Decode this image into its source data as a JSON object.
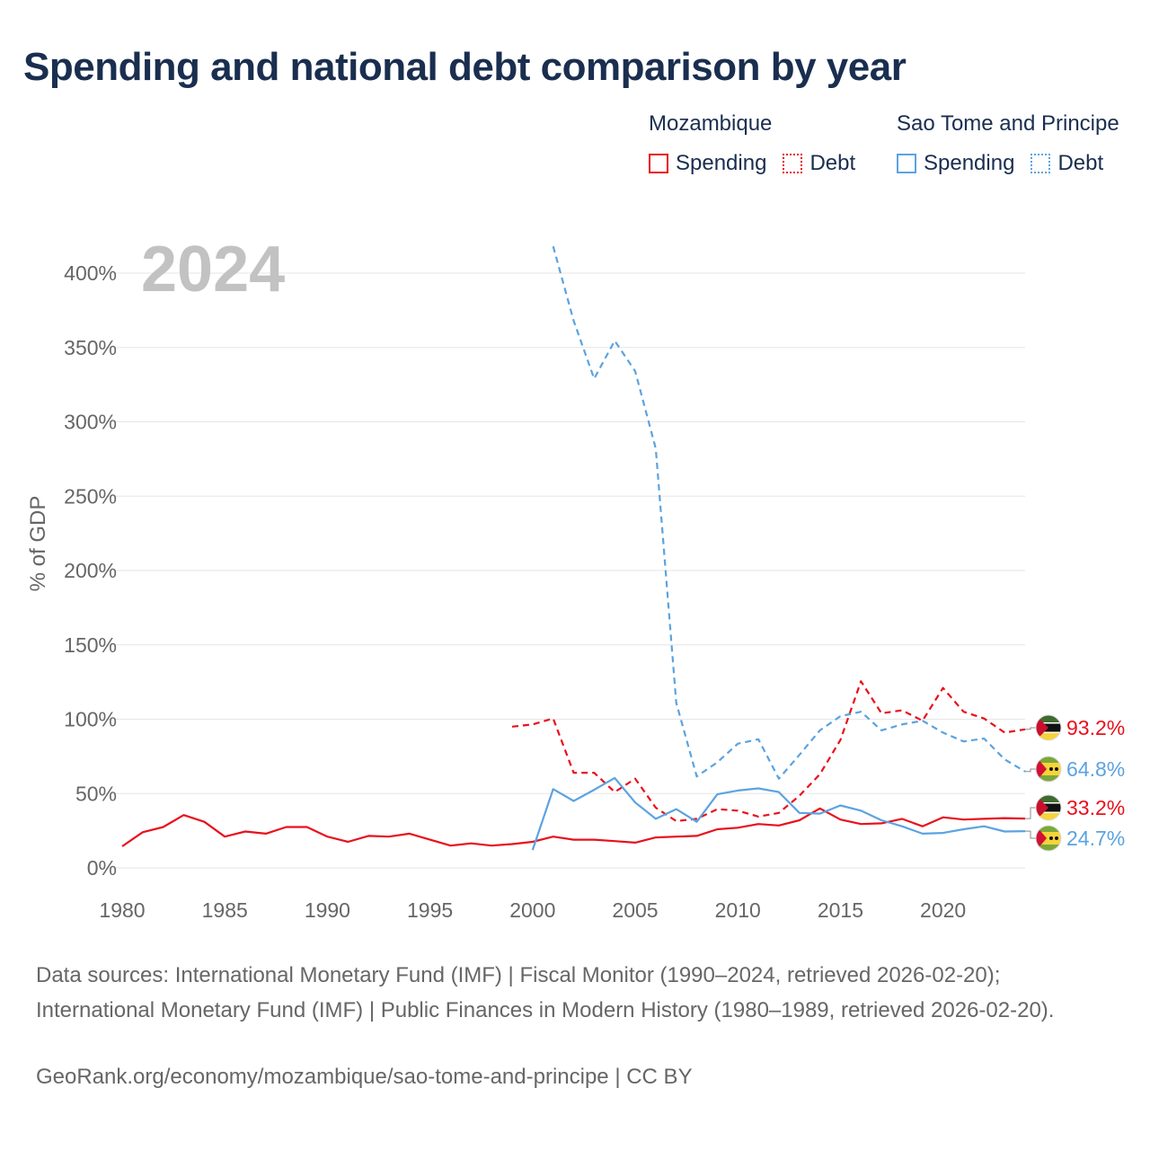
{
  "title": "Spending and national debt comparison by year",
  "legend": {
    "groups": [
      {
        "name": "Mozambique",
        "color": "#e8111c",
        "items": [
          "Spending",
          "Debt"
        ]
      },
      {
        "name": "Sao Tome and Principe",
        "color": "#5ba3e0",
        "items": [
          "Spending",
          "Debt"
        ]
      }
    ]
  },
  "year_watermark": "2024",
  "sources": "Data sources: International Monetary Fund (IMF) | Fiscal Monitor (1990–2024, retrieved 2026-02-20); International Monetary Fund (IMF) | Public Finances in Modern History (1980–1989, retrieved 2026-02-20).",
  "credit": "GeoRank.org/economy/mozambique/sao-tome-and-principe | CC BY",
  "chart_data": {
    "type": "line",
    "title": "Spending and national debt comparison by year",
    "ylabel": "% of GDP",
    "xlabel": "",
    "xlim": [
      1980,
      2024
    ],
    "ylim": [
      0,
      420
    ],
    "x_ticks": [
      1980,
      1985,
      1990,
      1995,
      2000,
      2005,
      2010,
      2015,
      2020
    ],
    "y_ticks": [
      0,
      50,
      100,
      150,
      200,
      250,
      300,
      350,
      400
    ],
    "y_tick_labels": [
      "0%",
      "50%",
      "100%",
      "150%",
      "200%",
      "250%",
      "300%",
      "350%",
      "400%"
    ],
    "series": [
      {
        "name": "Mozambique Spending",
        "country": "Mozambique",
        "kind": "Spending",
        "color": "#e8111c",
        "dash": "solid",
        "x": [
          1980,
          1981,
          1982,
          1983,
          1984,
          1985,
          1986,
          1987,
          1988,
          1989,
          1990,
          1991,
          1992,
          1993,
          1994,
          1995,
          1996,
          1997,
          1998,
          1999,
          2000,
          2001,
          2002,
          2003,
          2004,
          2005,
          2006,
          2007,
          2008,
          2009,
          2010,
          2011,
          2012,
          2013,
          2014,
          2015,
          2016,
          2017,
          2018,
          2019,
          2020,
          2021,
          2022,
          2023,
          2024
        ],
        "values": [
          14.5,
          24,
          27.5,
          35.5,
          31,
          21,
          24.5,
          23,
          27.5,
          27.5,
          21,
          17.5,
          21.5,
          21,
          23,
          19,
          15,
          16.5,
          15,
          16,
          17.5,
          21,
          19,
          19,
          18,
          17,
          20.5,
          21,
          21.5,
          26,
          27,
          29.5,
          28.5,
          32,
          40,
          32.5,
          29.5,
          30,
          33,
          28,
          34,
          32.5,
          33,
          33.5,
          33.2
        ],
        "end_label": "33.2%"
      },
      {
        "name": "Mozambique Debt",
        "country": "Mozambique",
        "kind": "Debt",
        "color": "#e8111c",
        "dash": "dashed",
        "x": [
          1999,
          2000,
          2001,
          2002,
          2003,
          2004,
          2005,
          2006,
          2007,
          2008,
          2009,
          2010,
          2011,
          2012,
          2013,
          2014,
          2015,
          2016,
          2017,
          2018,
          2019,
          2020,
          2021,
          2022,
          2023,
          2024
        ],
        "values": [
          95,
          96.5,
          100.5,
          64,
          64,
          51,
          60,
          40.5,
          31.5,
          33,
          39.5,
          38.5,
          34.5,
          37,
          48.5,
          63,
          86,
          125.5,
          104,
          106,
          99,
          121,
          105,
          100.5,
          91,
          93.2
        ],
        "end_label": "93.2%"
      },
      {
        "name": "Sao Tome and Principe Spending",
        "country": "Sao Tome and Principe",
        "kind": "Spending",
        "color": "#5ba3e0",
        "dash": "solid",
        "x": [
          2000,
          2001,
          2002,
          2003,
          2004,
          2005,
          2006,
          2007,
          2008,
          2009,
          2010,
          2011,
          2012,
          2013,
          2014,
          2015,
          2016,
          2017,
          2018,
          2019,
          2020,
          2021,
          2022,
          2023,
          2024
        ],
        "values": [
          12,
          53,
          45,
          52.5,
          60.5,
          44,
          33,
          39.5,
          31,
          49.5,
          52,
          53.5,
          51,
          37,
          36.5,
          42,
          38.5,
          32,
          28,
          23,
          23.5,
          26,
          28,
          24.5,
          24.7
        ],
        "end_label": "24.7%"
      },
      {
        "name": "Sao Tome and Principe Debt",
        "country": "Sao Tome and Principe",
        "kind": "Debt",
        "color": "#5ba3e0",
        "dash": "dashed",
        "x": [
          2001,
          2002,
          2003,
          2004,
          2005,
          2006,
          2007,
          2008,
          2009,
          2010,
          2011,
          2012,
          2013,
          2014,
          2015,
          2016,
          2017,
          2018,
          2019,
          2020,
          2021,
          2022,
          2023,
          2024
        ],
        "values": [
          418,
          368,
          329,
          354.5,
          334,
          282,
          111,
          61.5,
          71,
          83.5,
          86.5,
          60,
          76,
          92.5,
          102,
          105,
          92.5,
          96.5,
          99,
          91,
          85,
          87,
          73,
          64.8
        ],
        "end_label": "64.8%"
      }
    ]
  }
}
